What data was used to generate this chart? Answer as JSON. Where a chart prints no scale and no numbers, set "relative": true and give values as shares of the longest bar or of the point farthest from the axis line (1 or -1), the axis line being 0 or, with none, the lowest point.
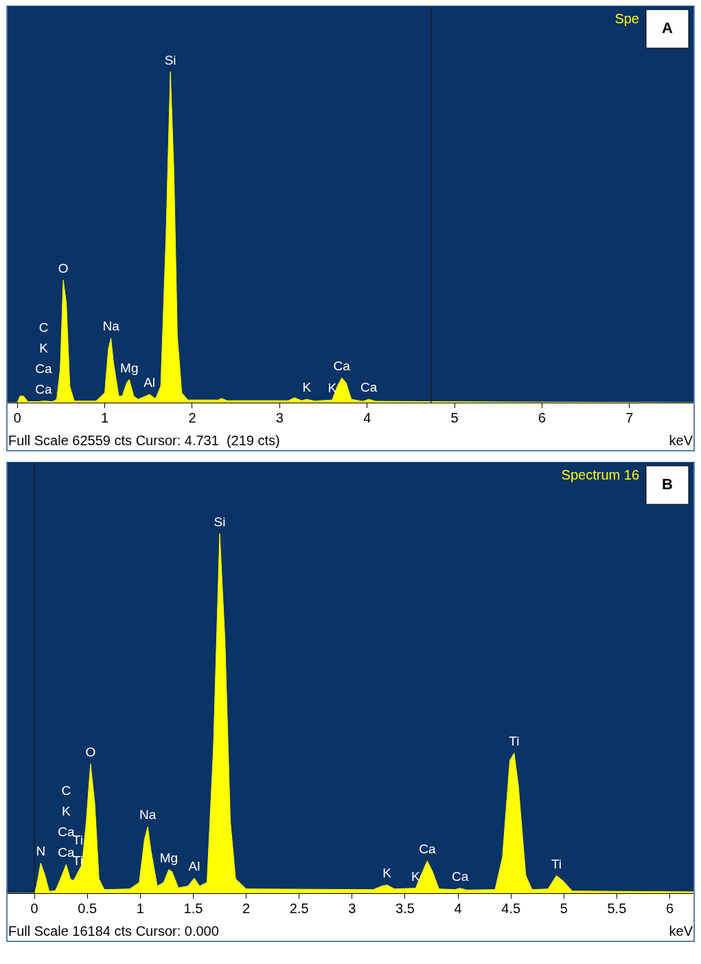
{
  "chart_data": [
    {
      "type": "area",
      "relative": true,
      "title": "Spe",
      "subtitle": "A",
      "xlabel": "keV",
      "x": [
        -0.12,
        0,
        0.03,
        0.07,
        0.12,
        0.25,
        0.3,
        0.4,
        0.45,
        0.49,
        0.525,
        0.56,
        0.6,
        0.65,
        0.9,
        1.0,
        1.04,
        1.07,
        1.1,
        1.16,
        1.2,
        1.25,
        1.28,
        1.33,
        1.38,
        1.47,
        1.51,
        1.58,
        1.64,
        1.7,
        1.75,
        1.79,
        1.83,
        1.88,
        1.95,
        2.3,
        2.33,
        2.4,
        3.1,
        3.17,
        3.25,
        3.31,
        3.4,
        3.6,
        3.66,
        3.71,
        3.76,
        3.82,
        3.95,
        4.02,
        4.1,
        4.7,
        5.5,
        7.74
      ],
      "series": [
        {
          "color": "#ffff00",
          "values": [
            0,
            0,
            0.02,
            0.02,
            0.003,
            0.003,
            0.005,
            0.003,
            0.01,
            0.1,
            0.37,
            0.3,
            0.05,
            0.005,
            0.005,
            0.03,
            0.16,
            0.195,
            0.12,
            0.02,
            0.02,
            0.06,
            0.07,
            0.02,
            0.01,
            0.02,
            0.025,
            0.012,
            0.05,
            0.5,
            1,
            0.7,
            0.2,
            0.03,
            0.008,
            0.008,
            0.013,
            0.006,
            0.006,
            0.015,
            0.006,
            0.01,
            0.005,
            0.008,
            0.05,
            0.075,
            0.06,
            0.01,
            0.004,
            0.01,
            0.004,
            0.003,
            0.002,
            0
          ]
        }
      ],
      "xlim": [
        -0.12,
        7.74
      ],
      "xticks": [
        0,
        1,
        2,
        3,
        4,
        5,
        6,
        7
      ],
      "ref_lines": [
        {
          "axis": "x",
          "value": 4.731,
          "color": "#1a1a1a"
        }
      ],
      "annotations": [
        "Full Scale 62559 cts Cursor: 4.731  (219 cts)",
        "C",
        "K",
        {
          "text": "Ca",
          "x": 0.3,
          "y": 0.005
        },
        {
          "text": "Ca",
          "x": 0.3,
          "y": 0.005
        },
        {
          "text": "O",
          "x": 0.525,
          "y": 0.37
        },
        {
          "text": "Na",
          "x": 1.07,
          "y": 0.195
        },
        {
          "text": "Mg",
          "x": 1.28,
          "y": 0.07
        },
        {
          "text": "Al",
          "x": 1.51,
          "y": 0.025
        },
        {
          "text": "Si",
          "x": 1.75,
          "y": 1
        },
        {
          "text": "K",
          "x": 3.31,
          "y": 0.01
        },
        {
          "text": "K",
          "x": 3.6,
          "y": 0.008
        },
        {
          "text": "Ca",
          "x": 3.71,
          "y": 0.075
        },
        {
          "text": "Ca",
          "x": 4.02,
          "y": 0.01
        }
      ]
    },
    {
      "type": "area",
      "relative": true,
      "title": "Spectrum 16",
      "subtitle": "B",
      "xlabel": "keV",
      "x": [
        -0.26,
        0,
        0.02,
        0.06,
        0.1,
        0.14,
        0.2,
        0.26,
        0.3,
        0.34,
        0.37,
        0.41,
        0.45,
        0.49,
        0.53,
        0.57,
        0.61,
        0.66,
        0.9,
        0.99,
        1.04,
        1.07,
        1.1,
        1.16,
        1.22,
        1.27,
        1.3,
        1.36,
        1.45,
        1.51,
        1.56,
        1.63,
        1.69,
        1.75,
        1.8,
        1.85,
        1.9,
        2.0,
        3.2,
        3.28,
        3.33,
        3.4,
        3.6,
        3.65,
        3.71,
        3.76,
        3.82,
        3.97,
        4.02,
        4.08,
        4.35,
        4.42,
        4.49,
        4.53,
        4.57,
        4.64,
        4.7,
        4.85,
        4.93,
        4.99,
        5.08,
        6.23
      ],
      "series": [
        {
          "color": "#ffff00",
          "values": [
            0,
            0,
            0.02,
            0.084,
            0.05,
            0.005,
            0.008,
            0.05,
            0.08,
            0.04,
            0.035,
            0.058,
            0.08,
            0.2,
            0.36,
            0.25,
            0.04,
            0.01,
            0.012,
            0.03,
            0.15,
            0.185,
            0.12,
            0.02,
            0.03,
            0.066,
            0.06,
            0.015,
            0.02,
            0.042,
            0.02,
            0.03,
            0.4,
            1,
            0.7,
            0.2,
            0.04,
            0.012,
            0.01,
            0.02,
            0.023,
            0.012,
            0.014,
            0.05,
            0.09,
            0.06,
            0.012,
            0.01,
            0.014,
            0.009,
            0.01,
            0.1,
            0.37,
            0.39,
            0.3,
            0.05,
            0.01,
            0.012,
            0.049,
            0.035,
            0.006,
            0.004
          ]
        }
      ],
      "xlim": [
        -0.26,
        6.23
      ],
      "xticks": [
        0,
        0.5,
        1,
        1.5,
        2,
        2.5,
        3,
        3.5,
        4,
        4.5,
        5,
        5.5,
        6
      ],
      "ref_lines": [
        {
          "axis": "x",
          "value": 0,
          "color": "#1a1a1a"
        }
      ],
      "annotations": [
        "Full Scale 16184 cts Cursor: 0.000",
        {
          "text": "N",
          "x": 0.06,
          "y": 0.084
        },
        "C",
        "K",
        {
          "text": "Ca",
          "x": 0.3,
          "y": 0.08
        },
        {
          "text": "Ca",
          "x": 0.3,
          "y": 0.08
        },
        {
          "text": "Ti",
          "x": 0.41,
          "y": 0.058
        },
        {
          "text": "Ti",
          "x": 0.41,
          "y": 0.058
        },
        {
          "text": "O",
          "x": 0.53,
          "y": 0.36
        },
        {
          "text": "Na",
          "x": 1.07,
          "y": 0.185
        },
        {
          "text": "Mg",
          "x": 1.27,
          "y": 0.066
        },
        {
          "text": "Al",
          "x": 1.51,
          "y": 0.042
        },
        {
          "text": "Si",
          "x": 1.75,
          "y": 1
        },
        {
          "text": "K",
          "x": 3.33,
          "y": 0.023
        },
        {
          "text": "K",
          "x": 3.6,
          "y": 0.014
        },
        {
          "text": "Ca",
          "x": 3.71,
          "y": 0.09
        },
        {
          "text": "Ca",
          "x": 4.02,
          "y": 0.014
        },
        {
          "text": "Ti",
          "x": 4.53,
          "y": 0.39
        },
        {
          "text": "Ti",
          "x": 4.93,
          "y": 0.049
        }
      ]
    }
  ]
}
